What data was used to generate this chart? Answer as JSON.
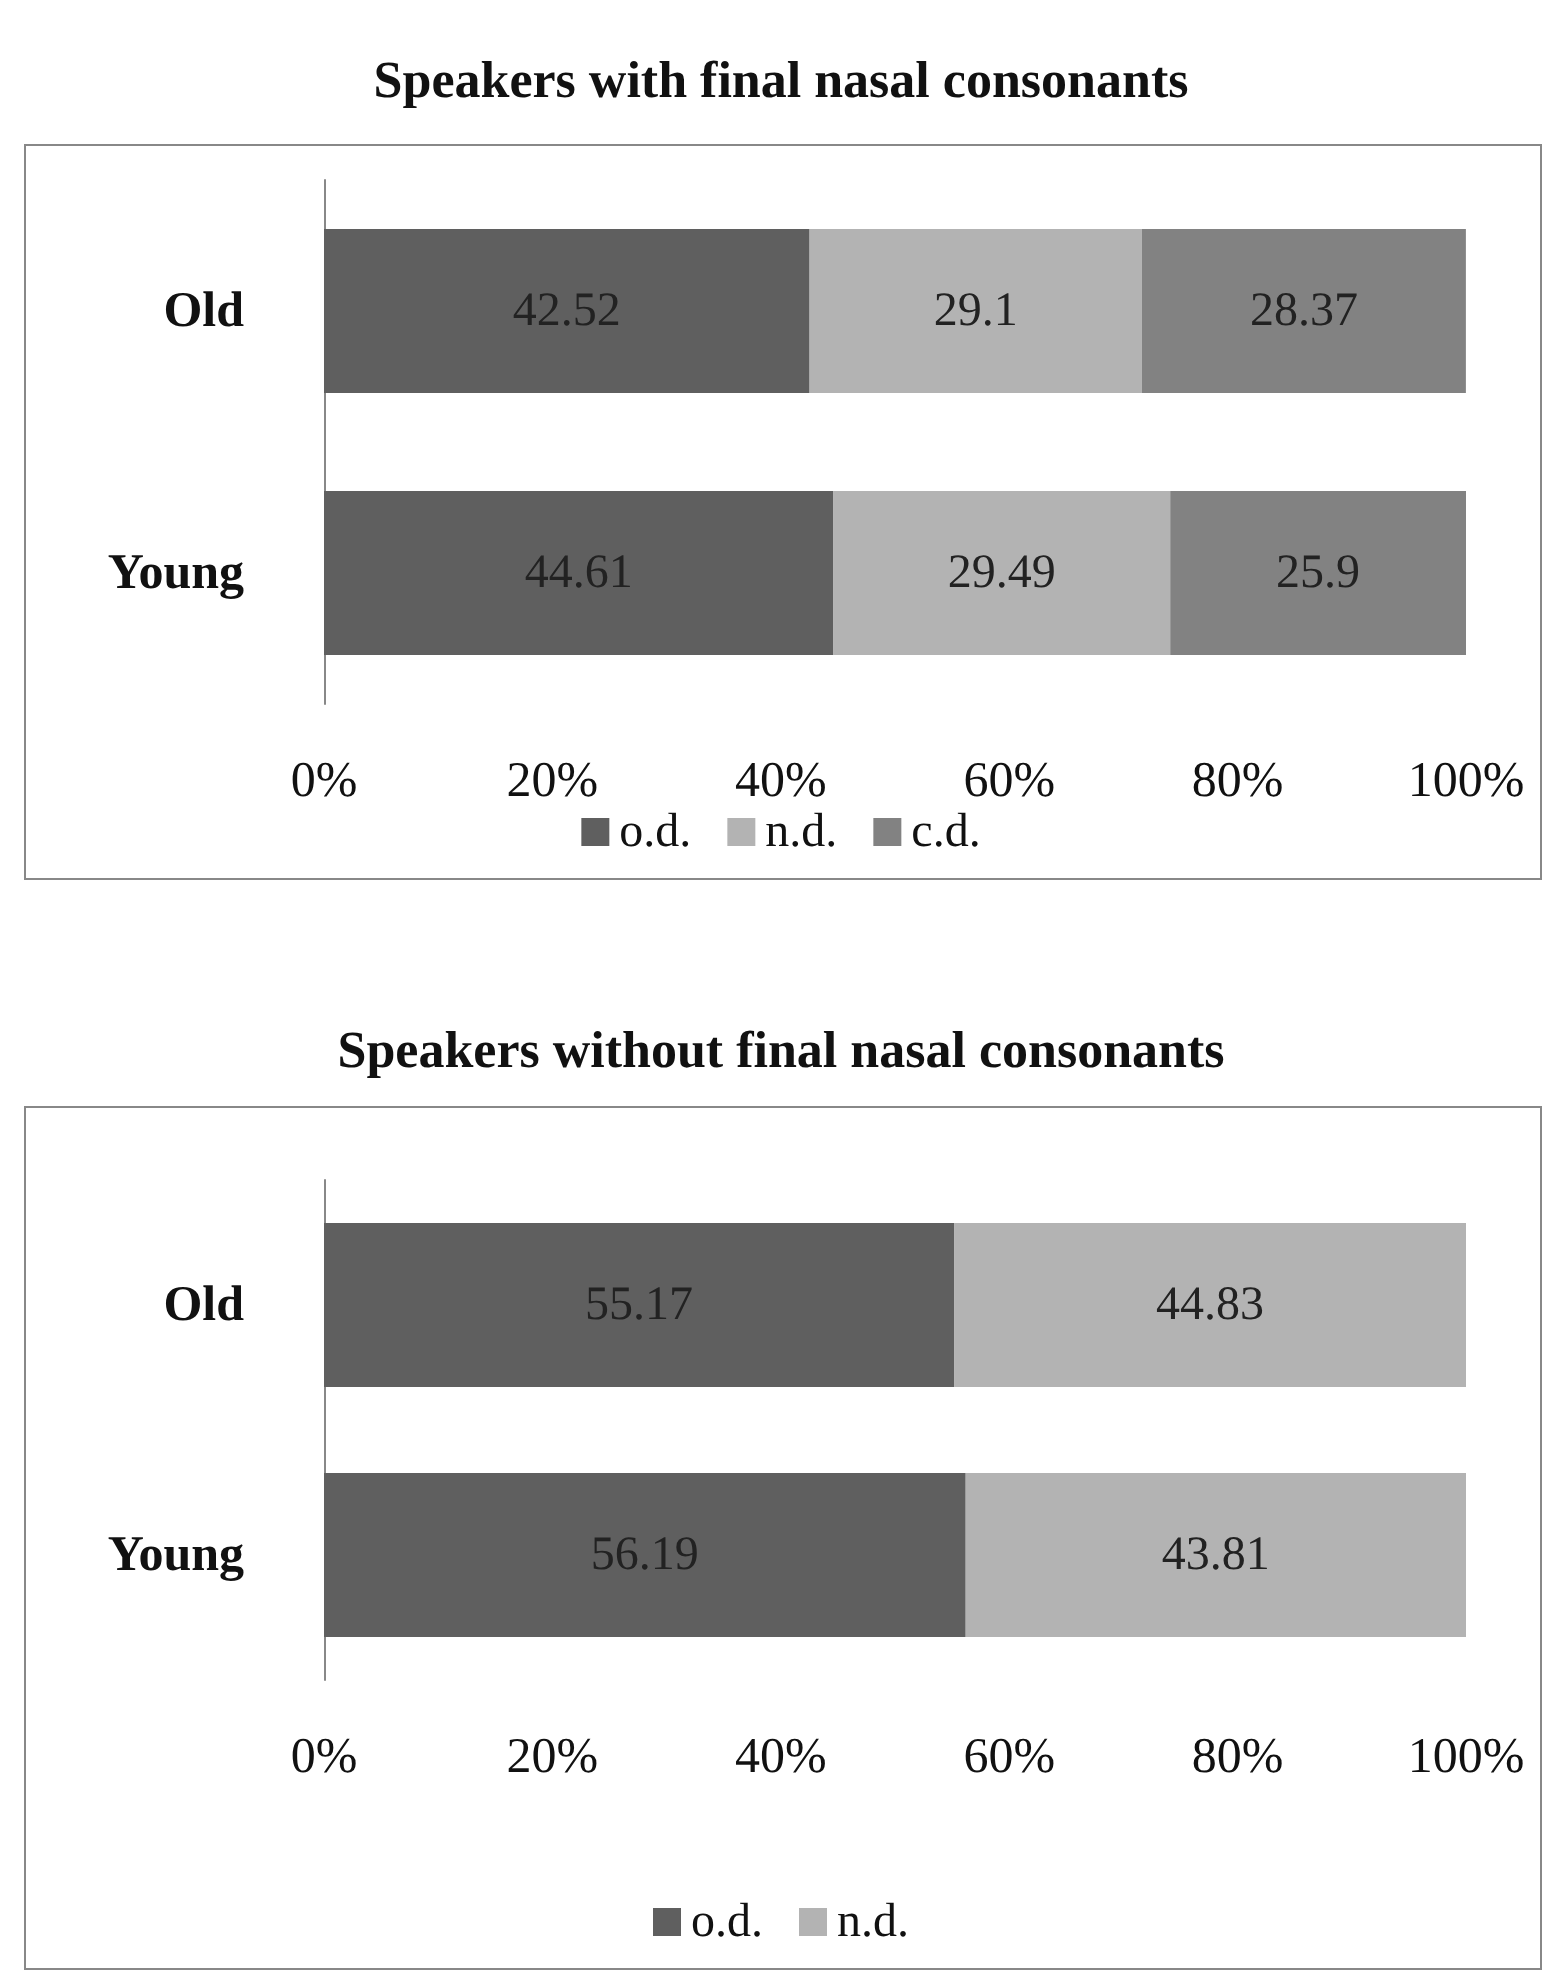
{
  "chart_data": [
    {
      "type": "bar",
      "title": "Speakers with final nasal consonants",
      "orientation": "horizontal",
      "stacked": true,
      "categories": [
        "Old",
        "Young"
      ],
      "series": [
        {
          "name": "o.d.",
          "color": "#5f5f5f",
          "values": [
            42.52,
            44.61
          ]
        },
        {
          "name": "n.d.",
          "color": "#b3b3b3",
          "values": [
            29.1,
            29.49
          ]
        },
        {
          "name": "c.d.",
          "color": "#828282",
          "values": [
            28.37,
            25.9
          ]
        }
      ],
      "xlim": [
        0,
        100
      ],
      "xticks": [
        {
          "value": 0,
          "label": "0%"
        },
        {
          "value": 20,
          "label": "20%"
        },
        {
          "value": 40,
          "label": "40%"
        },
        {
          "value": 60,
          "label": "60%"
        },
        {
          "value": 80,
          "label": "80%"
        },
        {
          "value": 100,
          "label": "100%"
        }
      ],
      "data_labels": true,
      "legend": "bottom",
      "grid": false
    },
    {
      "type": "bar",
      "title": "Speakers without final nasal consonants",
      "orientation": "horizontal",
      "stacked": true,
      "categories": [
        "Old",
        "Young"
      ],
      "series": [
        {
          "name": "o.d.",
          "color": "#5f5f5f",
          "values": [
            55.17,
            56.19
          ]
        },
        {
          "name": "n.d.",
          "color": "#b3b3b3",
          "values": [
            44.83,
            43.81
          ]
        }
      ],
      "xlim": [
        0,
        100
      ],
      "xticks": [
        {
          "value": 0,
          "label": "0%"
        },
        {
          "value": 20,
          "label": "20%"
        },
        {
          "value": 40,
          "label": "40%"
        },
        {
          "value": 60,
          "label": "60%"
        },
        {
          "value": 80,
          "label": "80%"
        },
        {
          "value": 100,
          "label": "100%"
        }
      ],
      "data_labels": true,
      "legend": "bottom",
      "grid": false
    }
  ]
}
